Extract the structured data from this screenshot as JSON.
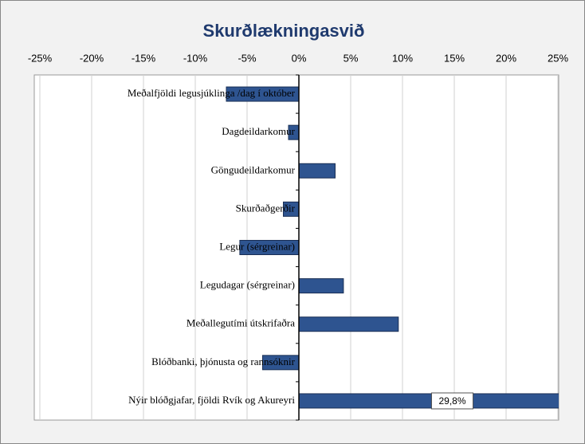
{
  "chart_data": {
    "type": "barh",
    "title": "Skurðlækningasvið",
    "categories": [
      "Meðalfjöldi legusjúklinga /dag í október",
      "Dagdeildarkomur",
      "Göngudeildarkomur",
      "Skurðaðgerðir",
      "Legur (sérgreinar)",
      "Legudagar (sérgreinar)",
      "Meðallegutími útskrifaðra",
      "Blóðbanki, þjónusta og rannsóknir",
      "Nýir blóðgjafar, fjöldi Rvík og Akureyri"
    ],
    "values": [
      -7.0,
      -1.0,
      3.5,
      -1.5,
      -5.7,
      4.3,
      9.6,
      -3.5,
      29.8
    ],
    "value_labels": [
      null,
      null,
      null,
      null,
      null,
      null,
      null,
      null,
      "29,8%"
    ],
    "color": "#2e5490",
    "xlim": [
      -25,
      25
    ],
    "xticks": [
      {
        "value": -25,
        "label": "-25%"
      },
      {
        "value": -20,
        "label": "-20%"
      },
      {
        "value": -15,
        "label": "-15%"
      },
      {
        "value": -10,
        "label": "-10%"
      },
      {
        "value": -5,
        "label": "-5%"
      },
      {
        "value": 0,
        "label": "0%"
      },
      {
        "value": 5,
        "label": "5%"
      },
      {
        "value": 10,
        "label": "10%"
      },
      {
        "value": 15,
        "label": "15%"
      },
      {
        "value": 20,
        "label": "20%"
      },
      {
        "value": 25,
        "label": "25%"
      }
    ],
    "grid": true
  }
}
